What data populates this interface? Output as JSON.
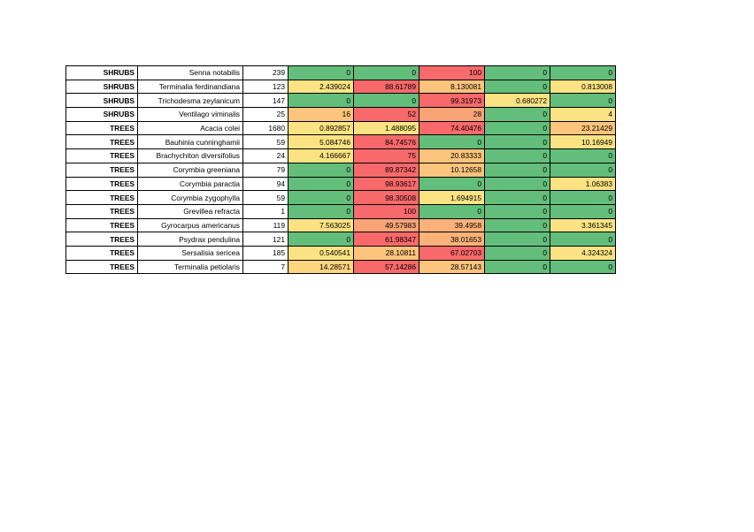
{
  "table": {
    "rows": [
      {
        "category": "SHRUBS",
        "species": "Senna notabilis",
        "n": "239",
        "values": [
          "0",
          "0",
          "100",
          "0",
          "0"
        ],
        "colors": [
          "#63be7b",
          "#63be7b",
          "#f8696b",
          "#63be7b",
          "#63be7b"
        ]
      },
      {
        "category": "SHRUBS",
        "species": "Terminalia  ferdinandiana",
        "n": "123",
        "values": [
          "2.439024",
          "88.61789",
          "8.130081",
          "0",
          "0.813008"
        ],
        "colors": [
          "#fbe383",
          "#f8696b",
          "#fcc47c",
          "#63be7b",
          "#fbe383"
        ]
      },
      {
        "category": "SHRUBS",
        "species": "Trichodesma zeylanicum",
        "n": "147",
        "values": [
          "0",
          "0",
          "99.31973",
          "0.680272",
          "0"
        ],
        "colors": [
          "#63be7b",
          "#63be7b",
          "#f8696b",
          "#fbe383",
          "#63be7b"
        ]
      },
      {
        "category": "SHRUBS",
        "species": "Ventilago viminalis",
        "n": "25",
        "values": [
          "16",
          "52",
          "28",
          "0",
          "4"
        ],
        "colors": [
          "#fcc47c",
          "#f8696b",
          "#f9a476",
          "#63be7b",
          "#fbe383"
        ]
      },
      {
        "category": "TREES",
        "species": "Acacia colei",
        "n": "1680",
        "values": [
          "0.892857",
          "1.488095",
          "74.40476",
          "0",
          "23.21429"
        ],
        "colors": [
          "#fbe383",
          "#fbe383",
          "#f8696b",
          "#63be7b",
          "#fcc47c"
        ]
      },
      {
        "category": "TREES",
        "species": "Bauhinia cunninghamii",
        "n": "59",
        "values": [
          "5.084746",
          "84.74576",
          "0",
          "0",
          "10.16949"
        ],
        "colors": [
          "#fbe383",
          "#f8696b",
          "#63be7b",
          "#63be7b",
          "#fbe383"
        ]
      },
      {
        "category": "TREES",
        "species": "Brachychiton diversifolius",
        "n": "24",
        "values": [
          "4.166667",
          "75",
          "20.83333",
          "0",
          "0"
        ],
        "colors": [
          "#fbe383",
          "#f8696b",
          "#fcc47c",
          "#63be7b",
          "#63be7b"
        ]
      },
      {
        "category": "TREES",
        "species": "Corymbia  greeniana",
        "n": "79",
        "values": [
          "0",
          "89.87342",
          "10.12658",
          "0",
          "0"
        ],
        "colors": [
          "#63be7b",
          "#f8696b",
          "#fcc47c",
          "#63be7b",
          "#63be7b"
        ]
      },
      {
        "category": "TREES",
        "species": "Corymbia  paractia",
        "n": "94",
        "values": [
          "0",
          "98.93617",
          "0",
          "0",
          "1.06383"
        ],
        "colors": [
          "#63be7b",
          "#f8696b",
          "#63be7b",
          "#63be7b",
          "#fbe383"
        ]
      },
      {
        "category": "TREES",
        "species": "Corymbia zygophylla",
        "n": "59",
        "values": [
          "0",
          "98.30508",
          "1.694915",
          "0",
          "0"
        ],
        "colors": [
          "#63be7b",
          "#f8696b",
          "#fbe383",
          "#63be7b",
          "#63be7b"
        ]
      },
      {
        "category": "TREES",
        "species": "Grevillea refracta",
        "n": "1",
        "values": [
          "0",
          "100",
          "0",
          "0",
          "0"
        ],
        "colors": [
          "#63be7b",
          "#f8696b",
          "#63be7b",
          "#63be7b",
          "#63be7b"
        ]
      },
      {
        "category": "TREES",
        "species": "Gyrocarpus americanus",
        "n": "119",
        "values": [
          "7.563025",
          "49.57983",
          "39.4958",
          "0",
          "3.361345"
        ],
        "colors": [
          "#fbe383",
          "#f9a476",
          "#fcb279",
          "#63be7b",
          "#fbe383"
        ]
      },
      {
        "category": "TREES",
        "species": "Psydrax pendulina",
        "n": "121",
        "values": [
          "0",
          "61.98347",
          "38.01653",
          "0",
          "0"
        ],
        "colors": [
          "#63be7b",
          "#f8696b",
          "#fcb279",
          "#63be7b",
          "#63be7b"
        ]
      },
      {
        "category": "TREES",
        "species": "Sersalisia sericea",
        "n": "185",
        "values": [
          "0.540541",
          "28.10811",
          "67.02703",
          "0",
          "4.324324"
        ],
        "colors": [
          "#fbe383",
          "#fcc47c",
          "#f8696b",
          "#63be7b",
          "#fbe383"
        ]
      },
      {
        "category": "TREES",
        "species": "Terminalia  petiolaris",
        "n": "7",
        "values": [
          "14.28571",
          "57.14286",
          "28.57143",
          "0",
          "0"
        ],
        "colors": [
          "#fcd57f",
          "#f8696b",
          "#fcc47c",
          "#63be7b",
          "#63be7b"
        ]
      }
    ]
  }
}
